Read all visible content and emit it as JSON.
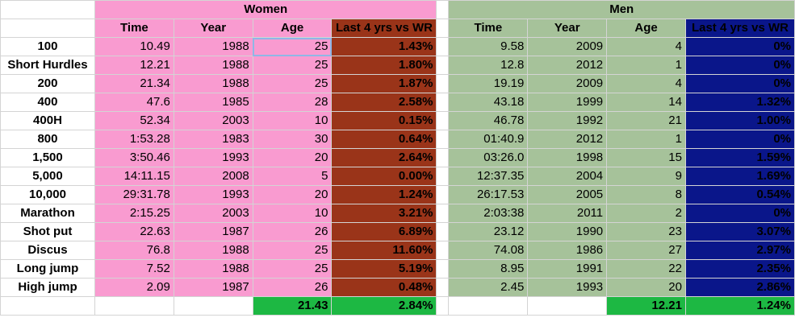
{
  "women": {
    "title": "Women",
    "headers": [
      "Time",
      "Year",
      "Age",
      "Last 4 yrs vs WR"
    ],
    "rows": [
      [
        "10.49",
        "1988",
        "25",
        "1.43%"
      ],
      [
        "12.21",
        "1988",
        "25",
        "1.80%"
      ],
      [
        "21.34",
        "1988",
        "25",
        "1.87%"
      ],
      [
        "47.6",
        "1985",
        "28",
        "2.58%"
      ],
      [
        "52.34",
        "2003",
        "10",
        "0.15%"
      ],
      [
        "1:53.28",
        "1983",
        "30",
        "0.64%"
      ],
      [
        "3:50.46",
        "1993",
        "20",
        "2.64%"
      ],
      [
        "14:11.15",
        "2008",
        "5",
        "0.00%"
      ],
      [
        "29:31.78",
        "1993",
        "20",
        "1.24%"
      ],
      [
        "2:15.25",
        "2003",
        "10",
        "3.21%"
      ],
      [
        "22.63",
        "1987",
        "26",
        "6.89%"
      ],
      [
        "76.8",
        "1988",
        "25",
        "11.60%"
      ],
      [
        "7.52",
        "1988",
        "25",
        "5.19%"
      ],
      [
        "2.09",
        "1987",
        "26",
        "0.48%"
      ]
    ],
    "total_age": "21.43",
    "total_pct": "2.84%"
  },
  "men": {
    "title": "Men",
    "headers": [
      "Time",
      "Year",
      "Age",
      "Last 4 yrs vs WR"
    ],
    "rows": [
      [
        "9.58",
        "2009",
        "4",
        "0%"
      ],
      [
        "12.8",
        "2012",
        "1",
        "0%"
      ],
      [
        "19.19",
        "2009",
        "4",
        "0%"
      ],
      [
        "43.18",
        "1999",
        "14",
        "1.32%"
      ],
      [
        "46.78",
        "1992",
        "21",
        "1.00%"
      ],
      [
        "01:40.9",
        "2012",
        "1",
        "0%"
      ],
      [
        "03:26.0",
        "1998",
        "15",
        "1.59%"
      ],
      [
        "12:37.35",
        "2004",
        "9",
        "1.69%"
      ],
      [
        "26:17.53",
        "2005",
        "8",
        "0.54%"
      ],
      [
        "2:03:38",
        "2011",
        "2",
        "0%"
      ],
      [
        "23.12",
        "1990",
        "23",
        "3.07%"
      ],
      [
        "74.08",
        "1986",
        "27",
        "2.97%"
      ],
      [
        "8.95",
        "1991",
        "22",
        "2.35%"
      ],
      [
        "2.45",
        "1993",
        "20",
        "2.86%"
      ]
    ],
    "total_age": "12.21",
    "total_pct": "1.24%"
  },
  "events": [
    "100",
    "Short Hurdles",
    "200",
    "400",
    "400H",
    "800",
    "1,500",
    "5,000",
    "10,000",
    "Marathon",
    "Shot put",
    "Discus",
    "Long jump",
    "High jump"
  ],
  "colors": {
    "women_bg": "#f99bd0",
    "women_pct_bg": "#9a3419",
    "men_bg": "#a6c29a",
    "men_pct_bg": "#0a168a",
    "total_bg": "#1db843"
  }
}
